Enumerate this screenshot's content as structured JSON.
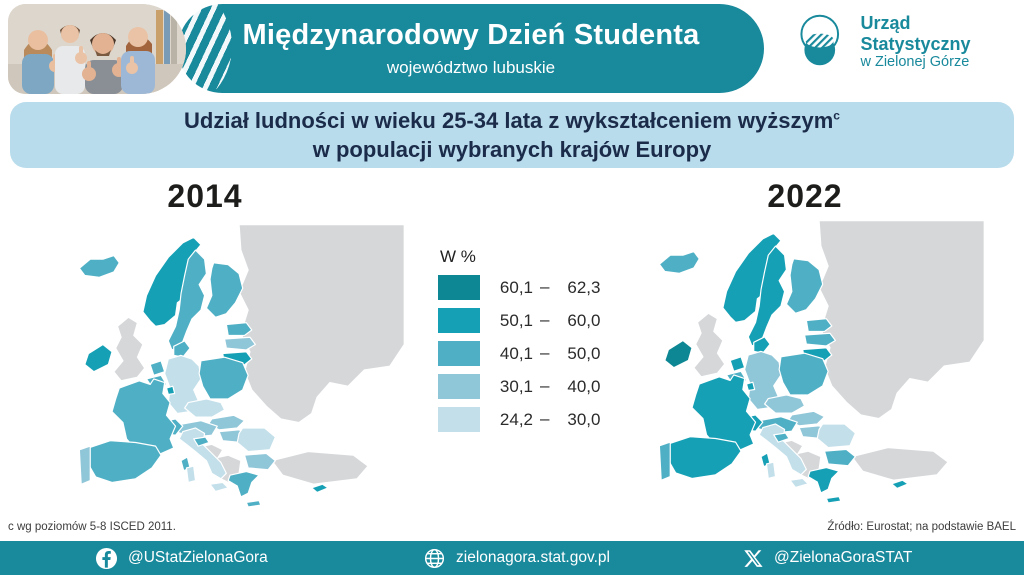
{
  "theme": {
    "teal": "#19899c",
    "banner_blue": "#b9dcec",
    "title_text": "#1b2b4a",
    "map_gray": "#d5d7d9"
  },
  "header": {
    "title": "Międzynarodowy Dzień Studenta",
    "subtitle": "województwo lubuskie"
  },
  "logo": {
    "line1": "Urząd Statystyczny",
    "line2": "w Zielonej Górze"
  },
  "banner": {
    "line1": "Udział ludności w wieku 25-34 lata z wykształceniem wyższym",
    "superscript": "c",
    "line2": "w populacji wybranych krajów Europy"
  },
  "legend": {
    "title": "W %",
    "items": [
      {
        "from": "60,1",
        "to": "62,3",
        "color": "#0d8793"
      },
      {
        "from": "50,1",
        "to": "60,0",
        "color": "#16a0b5"
      },
      {
        "from": "40,1",
        "to": "50,0",
        "color": "#4fb0c5"
      },
      {
        "from": "30,1",
        "to": "40,0",
        "color": "#8fc6d8"
      },
      {
        "from": "24,2",
        "to": "30,0",
        "color": "#c2dfea"
      }
    ],
    "no_data_color": "#d5d7d9"
  },
  "footnotes": {
    "left": "c wg poziomów 5-8 ISCED 2011.",
    "right": "Źródło: Eurostat; na podstawie BAEL"
  },
  "footer": {
    "facebook": "@UStatZielonaGora",
    "website": "zielonagora.stat.gov.pl",
    "x": "@ZielonaGoraSTAT"
  },
  "chart_data": {
    "type": "heatmap",
    "subtype": "choropleth-map-pair",
    "title": "Udział ludności w wieku 25-34 lata z wykształceniem wyższym w populacji wybranych krajów Europy",
    "unit": "W %",
    "class_ranges": [
      "60,1-62,3",
      "50,1-60,0",
      "40,1-50,0",
      "30,1-40,0",
      "24,2-30,0"
    ],
    "class_colors": [
      "#0d8793",
      "#16a0b5",
      "#4fb0c5",
      "#8fc6d8",
      "#c2dfea"
    ],
    "no_data_class": 0,
    "source": "Źródło: Eurostat; na podstawie BAEL",
    "footnote": "c wg poziomów 5-8 ISCED 2011.",
    "maps": [
      {
        "year": "2014",
        "country_classes": {
          "iceland": 3,
          "norway": 2,
          "sweden": 3,
          "finland": 3,
          "denmark": 3,
          "estonia": 3,
          "latvia": 4,
          "lithuania": 2,
          "ireland": 2,
          "uk": 0,
          "netherlands": 3,
          "belgium": 3,
          "luxembourg": 2,
          "germany": 5,
          "poland": 3,
          "czechia": 5,
          "slovakia": 4,
          "austria": 4,
          "switzerland": 3,
          "france": 3,
          "corsica": 3,
          "spain": 3,
          "portugal": 4,
          "italy": 5,
          "sardinia": 5,
          "sicily": 5,
          "slovenia": 3,
          "croatia": 0,
          "hungary": 4,
          "romania": 5,
          "bulgaria": 4,
          "greece": 3,
          "crete": 3,
          "cyprus": 2,
          "turkey": 0,
          "eastern_europe": 0,
          "western_balkans": 0
        }
      },
      {
        "year": "2022",
        "country_classes": {
          "iceland": 3,
          "norway": 2,
          "sweden": 2,
          "finland": 3,
          "denmark": 2,
          "estonia": 3,
          "latvia": 3,
          "lithuania": 2,
          "ireland": 1,
          "uk": 0,
          "netherlands": 2,
          "belgium": 3,
          "luxembourg": 2,
          "germany": 4,
          "poland": 3,
          "czechia": 4,
          "slovakia": 4,
          "austria": 3,
          "switzerland": 2,
          "france": 2,
          "corsica": 2,
          "spain": 2,
          "portugal": 3,
          "italy": 5,
          "sardinia": 5,
          "sicily": 5,
          "slovenia": 3,
          "croatia": 0,
          "hungary": 4,
          "romania": 5,
          "bulgaria": 3,
          "greece": 2,
          "crete": 2,
          "cyprus": 2,
          "turkey": 0,
          "eastern_europe": 0,
          "western_balkans": 0
        }
      }
    ]
  }
}
